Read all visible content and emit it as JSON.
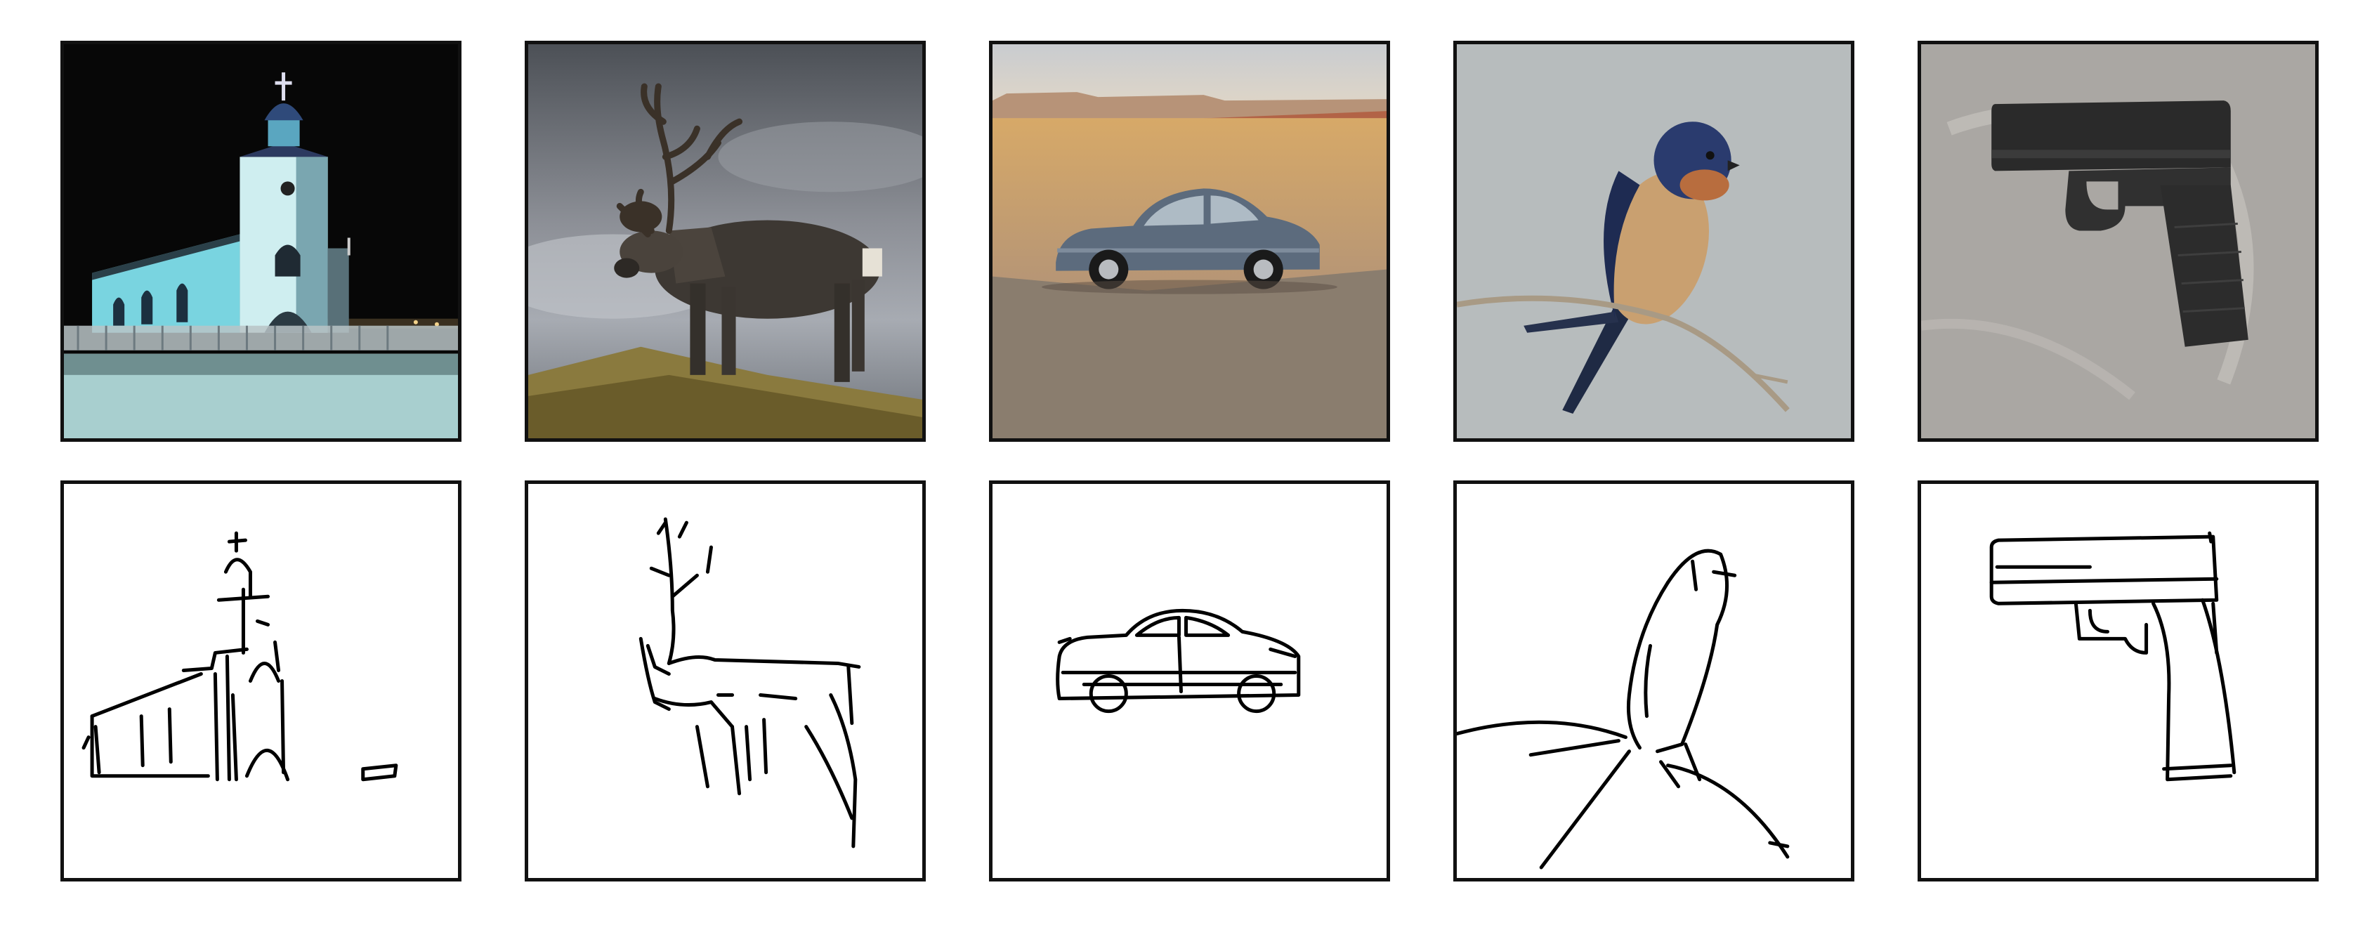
{
  "figure": {
    "rows": [
      "photographs",
      "edge-sketches"
    ],
    "columns": [
      {
        "subject": "church"
      },
      {
        "subject": "reindeer"
      },
      {
        "subject": "car"
      },
      {
        "subject": "swallow"
      },
      {
        "subject": "pistol"
      }
    ]
  },
  "colors": {
    "frame": "#111111",
    "sketch_stroke": "#000000",
    "sketch_background": "#ffffff"
  }
}
